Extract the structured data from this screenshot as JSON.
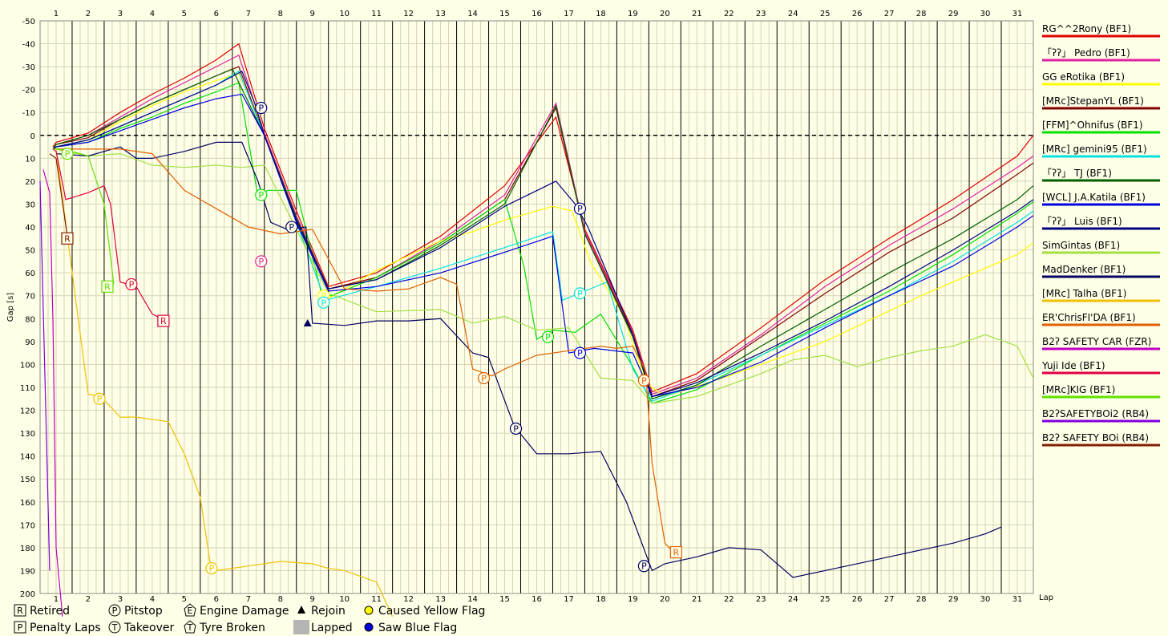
{
  "chart_data": {
    "type": "line",
    "title": "",
    "xlabel": "Lap",
    "ylabel": "Gap [s]",
    "x_ticks": [
      "1",
      "2",
      "3",
      "4",
      "5",
      "6",
      "7",
      "8",
      "9",
      "10",
      "11",
      "12",
      "13",
      "14",
      "15",
      "16",
      "17",
      "18",
      "19",
      "20",
      "21",
      "22",
      "23",
      "24",
      "25",
      "26",
      "27",
      "28",
      "29",
      "30",
      "31"
    ],
    "y_ticks": [
      "-50",
      "-40",
      "-30",
      "-20",
      "-10",
      "0",
      "10",
      "20",
      "30",
      "40",
      "50",
      "60",
      "70",
      "80",
      "90",
      "100",
      "110",
      "120",
      "130",
      "140",
      "150",
      "160",
      "170",
      "180",
      "190",
      "200"
    ],
    "xlim": [
      0.5,
      31.5
    ],
    "ylim": [
      -50,
      200
    ],
    "grid": true,
    "legend_position": "right",
    "series": [
      {
        "name": "RG^^2Rony (BF1)",
        "color": "#e00000",
        "x": [
          0.9,
          1,
          2,
          3,
          4,
          5,
          6,
          6.7,
          7.5,
          8.5,
          9.5,
          11,
          13,
          15,
          16.6,
          17.5,
          19,
          19.6,
          21,
          23,
          25,
          27,
          29,
          31,
          31.5
        ],
        "y": [
          5,
          3,
          -1,
          -10,
          -18,
          -25,
          -33,
          -40,
          -3,
          33,
          66,
          60,
          44,
          22,
          -8,
          41,
          85,
          112,
          104,
          84,
          63,
          45,
          28,
          9,
          0
        ]
      },
      {
        "name": "「ʔʔ」 Pedro (BF1)",
        "color": "#e020a0",
        "x": [
          0.9,
          1,
          2,
          3,
          4,
          5,
          6,
          6.7,
          7.5,
          8.5,
          9.5,
          11,
          13,
          15,
          16.6,
          17.5,
          19,
          19.6,
          21,
          23,
          25,
          27,
          29,
          31,
          31.5
        ],
        "y": [
          6,
          4,
          0,
          -8,
          -16,
          -23,
          -30,
          -35,
          -1,
          35,
          67,
          62,
          46,
          26,
          -14,
          42,
          86,
          113,
          106,
          87,
          66,
          48,
          32,
          14,
          9
        ]
      },
      {
        "name": "GG eRotika (BF1)",
        "color": "#ffff00",
        "x": [
          0.9,
          1,
          2,
          3,
          4,
          5,
          6,
          6.7,
          7.2,
          7.5,
          8.5,
          9.4,
          11,
          13,
          14,
          15,
          16.5,
          17.1,
          17.7,
          18.7,
          19.4,
          20,
          22,
          25,
          28,
          31,
          31.5
        ],
        "y": [
          6,
          5,
          2,
          -6,
          -13,
          -19,
          -24,
          -27,
          -12,
          0,
          37,
          72,
          59,
          46,
          42,
          37,
          31,
          33,
          56,
          78,
          108,
          114,
          105,
          90,
          70,
          52,
          47
        ]
      },
      {
        "name": "[MRc]StepanYL (BF1)",
        "color": "#800000",
        "x": [
          0.9,
          1,
          2,
          3,
          4,
          5,
          6,
          6.7,
          7.5,
          8.5,
          9.5,
          11,
          13,
          15,
          16.6,
          17.5,
          19,
          19.6,
          21,
          23,
          25,
          27,
          29,
          31,
          31.5
        ],
        "y": [
          6,
          4,
          1,
          -7,
          -14,
          -20,
          -26,
          -30,
          0,
          36,
          67,
          62,
          47,
          28,
          -12,
          43,
          87,
          114,
          107,
          88,
          69,
          51,
          36,
          17,
          12
        ]
      },
      {
        "name": "[FFM]^Ohnifus (BF1)",
        "color": "#00e000",
        "x": [
          0.9,
          1,
          2,
          3,
          4,
          5,
          6,
          6.7,
          7.3,
          7.6,
          8.5,
          9.3,
          9.6,
          11,
          13,
          15,
          15.6,
          16,
          16.5,
          17.2,
          18,
          19,
          19.6,
          21,
          23,
          25,
          27,
          29,
          31,
          31.5
        ],
        "y": [
          6,
          5,
          3,
          -3,
          -8,
          -14,
          -19,
          -23,
          27,
          24,
          24,
          70,
          70,
          62,
          47,
          28,
          57,
          89,
          85,
          86,
          78,
          101,
          117,
          111,
          96,
          82,
          68,
          52,
          34,
          29
        ]
      },
      {
        "name": "[MRc] gemini95 (BF1)",
        "color": "#00e0e0",
        "x": [
          0.9,
          1,
          2,
          3,
          4,
          5,
          6,
          6.7,
          7.5,
          8.5,
          9.4,
          11,
          13,
          15,
          16.5,
          16.8,
          17.5,
          18.2,
          19,
          19.6,
          21,
          23,
          25,
          27,
          29,
          31,
          31.5
        ],
        "y": [
          6,
          5,
          2,
          -4,
          -10,
          -16,
          -22,
          -28,
          0,
          38,
          72,
          66,
          58,
          49,
          42,
          72,
          68,
          64,
          102,
          116,
          109,
          96,
          83,
          70,
          55,
          38,
          33
        ]
      },
      {
        "name": "「ʔʔ」 TJ (BF1)",
        "color": "#006000",
        "x": [
          0.9,
          1,
          2,
          3,
          4,
          5,
          6,
          6.5,
          7.5,
          8.5,
          9.5,
          11,
          13,
          15,
          16.6,
          17.5,
          19,
          19.6,
          21,
          23,
          25,
          27,
          29,
          31,
          31.5
        ],
        "y": [
          6,
          4,
          0,
          -7,
          -14,
          -20,
          -26,
          -29,
          0,
          36,
          67,
          63,
          48,
          30,
          -13,
          43,
          88,
          115,
          109,
          92,
          76,
          60,
          45,
          28,
          22
        ]
      },
      {
        "name": "[WCL] J.A.Katila (BF1)",
        "color": "#0000e0",
        "x": [
          0.9,
          1,
          2,
          3,
          4,
          5,
          6,
          6.8,
          7.5,
          8.5,
          9.5,
          11,
          13,
          15,
          16.5,
          17,
          17.8,
          19,
          19.6,
          21,
          23,
          25,
          27,
          29,
          31,
          31.5
        ],
        "y": [
          6,
          5,
          3,
          -2,
          -7,
          -12,
          -16,
          -18,
          0,
          38,
          68,
          66,
          60,
          51,
          44,
          95,
          93,
          95,
          114,
          110,
          99,
          84,
          70,
          57,
          40,
          35
        ]
      },
      {
        "name": "「ʔʔ」 Luis (BF1)",
        "color": "#000080",
        "x": [
          0.9,
          1,
          2,
          3,
          4,
          5,
          6,
          6.8,
          7.2,
          7.5,
          8.5,
          9.5,
          11,
          13,
          15,
          16.6,
          17.2,
          17.6,
          19,
          19.6,
          21,
          23,
          25,
          27,
          29,
          31,
          31.5
        ],
        "y": [
          6,
          5,
          2,
          -4,
          -10,
          -16,
          -22,
          -28,
          -14,
          0,
          37,
          67,
          63,
          49,
          31,
          20,
          30,
          40,
          87,
          114,
          108,
          95,
          81,
          66,
          50,
          33,
          28
        ]
      },
      {
        "name": "SimGintas (BF1)",
        "color": "#a0e040",
        "x": [
          0.9,
          1,
          2,
          3,
          4,
          5,
          6,
          6.8,
          7.5,
          8.5,
          9.5,
          11,
          13,
          14,
          15,
          16,
          17,
          18,
          19,
          19.6,
          21,
          22,
          23,
          24,
          25,
          26,
          27,
          28,
          29,
          30,
          31,
          31.5
        ],
        "y": [
          6,
          6,
          9,
          8,
          13,
          14,
          13,
          14,
          13,
          41,
          69,
          77,
          76,
          82,
          79,
          85,
          84,
          106,
          107,
          117,
          114,
          109,
          104,
          98,
          96,
          101,
          97,
          94,
          92,
          87,
          92,
          106
        ]
      },
      {
        "name": "MadDenker (BF1)",
        "color": "#000060",
        "x": [
          1,
          2,
          3,
          3.5,
          4,
          5,
          6,
          6.8,
          7.3,
          7.7,
          8.2,
          8.8,
          9,
          10,
          11,
          12,
          13,
          14,
          14.5,
          15.3,
          16,
          17,
          18,
          18.8,
          19.6,
          20,
          21,
          22,
          23,
          24,
          25,
          26,
          27,
          28,
          29,
          30,
          30.5
        ],
        "y": [
          8,
          9,
          5,
          10,
          10,
          7,
          3,
          3,
          20,
          38,
          41,
          40,
          82,
          83,
          81,
          81,
          80,
          95,
          97,
          127,
          139,
          139,
          138,
          160,
          190,
          187,
          184,
          180,
          181,
          193,
          190,
          187,
          184,
          181,
          178,
          174,
          171
        ]
      },
      {
        "name": "[MRc] Talha (BF1)",
        "color": "#f0c000",
        "x": [
          1,
          1.5,
          2,
          2.4,
          3,
          3.5,
          4,
          4.5,
          5,
          5.5,
          5.8,
          6,
          6.5,
          7,
          8,
          9,
          9.5,
          10,
          11,
          11.5
        ],
        "y": [
          6,
          60,
          113,
          114,
          123,
          123,
          124,
          125,
          139,
          158,
          186,
          190,
          189,
          188,
          186,
          187,
          189,
          190,
          195,
          210
        ]
      },
      {
        "name": "ER'ChrisFI'DA (BF1)",
        "color": "#e06000",
        "x": [
          0.9,
          1,
          2,
          3,
          4,
          5,
          6,
          7,
          8,
          9,
          10,
          11,
          12,
          13,
          13.5,
          14,
          14.6,
          15,
          16,
          17,
          18,
          18.5,
          19,
          19.4,
          19.6,
          20,
          20.4
        ],
        "y": [
          6,
          6,
          6,
          6,
          8,
          24,
          32,
          40,
          43,
          41,
          67,
          68,
          67,
          62,
          65,
          102,
          105,
          102,
          96,
          94,
          92,
          93,
          92,
          103,
          143,
          178,
          184
        ]
      },
      {
        "name": "B2ʔ SAFETY CAR (FZR)",
        "color": "#c000c0",
        "x": [
          0.6,
          0.8,
          0.9,
          1,
          1.2
        ],
        "y": [
          15,
          25,
          80,
          180,
          210
        ]
      },
      {
        "name": "Yuji Ide (BF1)",
        "color": "#e00040",
        "x": [
          0.9,
          1,
          1.3,
          2,
          2.5,
          2.7,
          3,
          3.5,
          4,
          4.3
        ],
        "y": [
          6,
          7,
          28,
          25,
          22,
          30,
          64,
          66,
          78,
          80
        ]
      },
      {
        "name": "[MRc]KIG (BF1)",
        "color": "#60e000",
        "x": [
          0.9,
          1,
          1.5,
          2,
          2.5,
          2.8
        ],
        "y": [
          6,
          6,
          7,
          9,
          30,
          65
        ]
      },
      {
        "name": "B2ʔSAFETYBOi2 (RB4)",
        "color": "#8000e0",
        "x": [
          0.5,
          0.8
        ],
        "y": [
          20,
          190
        ]
      },
      {
        "name": "B2ʔ SAFETY BOi (RB4)",
        "color": "#802000",
        "x": [
          0.8,
          1,
          1.35
        ],
        "y": [
          8,
          10,
          44
        ]
      }
    ],
    "events": [
      {
        "type": "Pitstop",
        "series": "「ʔʔ」 Luis (BF1)",
        "x": 7.4,
        "y": -12
      },
      {
        "type": "Pitstop",
        "series": "[FFM]^Ohnifus (BF1)",
        "x": 7.4,
        "y": 26
      },
      {
        "type": "Pitstop",
        "series": "「ʔʔ」 Pedro (BF1)",
        "x": 7.4,
        "y": 55
      },
      {
        "type": "Pitstop",
        "series": "[MRc]KIG (BF1)",
        "x": 1.35,
        "y": 8
      },
      {
        "type": "Retired",
        "series": "B2ʔ SAFETY BOi (RB4)",
        "x": 1.35,
        "y": 45
      },
      {
        "type": "Retired",
        "series": "[MRc]KIG (BF1)",
        "x": 2.6,
        "y": 66
      },
      {
        "type": "Pitstop",
        "series": "Yuji Ide (BF1)",
        "x": 3.35,
        "y": 65
      },
      {
        "type": "Retired",
        "series": "Yuji Ide (BF1)",
        "x": 4.35,
        "y": 81
      },
      {
        "type": "Pitstop",
        "series": "[MRc] Talha (BF1)",
        "x": 2.35,
        "y": 115
      },
      {
        "type": "Pitstop",
        "series": "[MRc] Talha (BF1)",
        "x": 5.85,
        "y": 189
      },
      {
        "type": "Pitstop",
        "series": "MadDenker (BF1)",
        "x": 8.35,
        "y": 40
      },
      {
        "type": "Rejoin",
        "series": "MadDenker (BF1)",
        "x": 8.85,
        "y": 82
      },
      {
        "type": "Pitstop",
        "series": "GG eRotika (BF1)",
        "x": 9.35,
        "y": 70
      },
      {
        "type": "Pitstop",
        "series": "[MRc] gemini95 (BF1)",
        "x": 9.35,
        "y": 73
      },
      {
        "type": "Pitstop",
        "series": "ER'ChrisFI'DA (BF1)",
        "x": 14.35,
        "y": 106
      },
      {
        "type": "Pitstop",
        "series": "MadDenker (BF1)",
        "x": 15.35,
        "y": 128
      },
      {
        "type": "Pitstop",
        "series": "[FFM]^Ohnifus (BF1)",
        "x": 16.35,
        "y": 88
      },
      {
        "type": "Pitstop",
        "series": "「ʔʔ」 Luis (BF1)",
        "x": 17.35,
        "y": 32
      },
      {
        "type": "Pitstop",
        "series": "[MRc] gemini95 (BF1)",
        "x": 17.35,
        "y": 69
      },
      {
        "type": "Pitstop",
        "series": "[WCL] J.A.Katila (BF1)",
        "x": 17.35,
        "y": 95
      },
      {
        "type": "Pitstop",
        "series": "ER'ChrisFI'DA (BF1)",
        "x": 19.35,
        "y": 107
      },
      {
        "type": "Pitstop",
        "series": "MadDenker (BF1)",
        "x": 19.35,
        "y": 188
      },
      {
        "type": "Retired",
        "series": "ER'ChrisFI'DA (BF1)",
        "x": 20.35,
        "y": 182
      }
    ],
    "key": [
      {
        "symbol": "R",
        "shape": "square",
        "label": "Retired"
      },
      {
        "symbol": "P",
        "shape": "circle",
        "label": "Pitstop"
      },
      {
        "symbol": "E",
        "shape": "house",
        "label": "Engine Damage"
      },
      {
        "symbol": "",
        "shape": "triangle",
        "label": "Rejoin"
      },
      {
        "symbol": "",
        "shape": "yellow-dot",
        "label": "Caused Yellow Flag"
      },
      {
        "symbol": "P",
        "shape": "square",
        "label": "Penalty Laps"
      },
      {
        "symbol": "T",
        "shape": "circle",
        "label": "Takeover"
      },
      {
        "symbol": "T",
        "shape": "house",
        "label": "Tyre Broken"
      },
      {
        "symbol": "",
        "shape": "gray-box",
        "label": "Lapped"
      },
      {
        "symbol": "",
        "shape": "blue-dot",
        "label": "Saw Blue Flag"
      }
    ]
  }
}
